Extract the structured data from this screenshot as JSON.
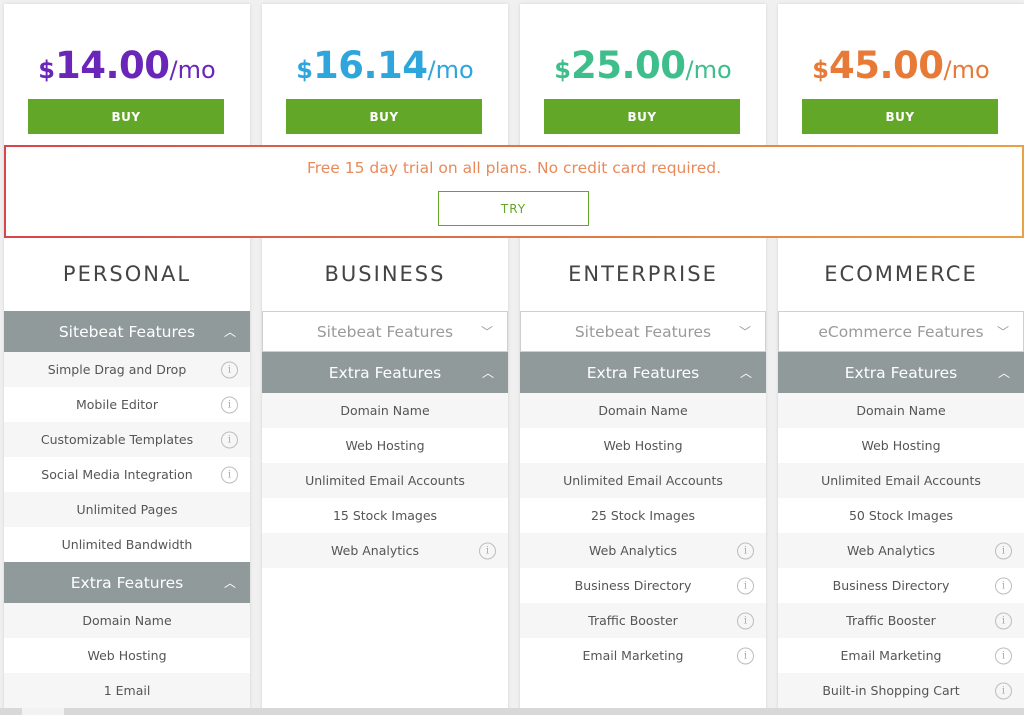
{
  "colors": {
    "buy_green": "#63a729",
    "personal_price": "#6a26b9",
    "business_price": "#2ea6dc",
    "enterprise_price": "#3dbe8b",
    "ecommerce_price": "#e67a36",
    "section_header": "#909a9a",
    "trial_border_left": "#d4474b",
    "trial_border_right": "#e8a143"
  },
  "trial": {
    "text": "Free 15 day trial on all plans. No credit card required.",
    "try_label": "TRY"
  },
  "plans": [
    {
      "currency": "$",
      "amount": "14.00",
      "period": "/mo",
      "buy_label": "BUY",
      "name": "PERSONAL",
      "sections": [
        {
          "title": "Sitebeat Features",
          "state": "expanded",
          "items": [
            "Simple Drag and Drop",
            "Mobile Editor",
            "Customizable Templates",
            "Social Media Integration",
            "Unlimited Pages",
            "Unlimited Bandwidth"
          ]
        },
        {
          "title": "Extra Features",
          "state": "expanded",
          "items": [
            "Domain Name",
            "Web Hosting",
            "1 Email"
          ]
        }
      ]
    },
    {
      "currency": "$",
      "amount": "16.14",
      "period": "/mo",
      "buy_label": "BUY",
      "name": "BUSINESS",
      "sections": [
        {
          "title": "Sitebeat Features",
          "state": "collapsed",
          "items": []
        },
        {
          "title": "Extra Features",
          "state": "expanded",
          "items": [
            "Domain Name",
            "Web Hosting",
            "Unlimited Email Accounts",
            "15 Stock Images",
            "Web Analytics"
          ]
        }
      ]
    },
    {
      "currency": "$",
      "amount": "25.00",
      "period": "/mo",
      "buy_label": "BUY",
      "name": "ENTERPRISE",
      "sections": [
        {
          "title": "Sitebeat Features",
          "state": "collapsed",
          "items": []
        },
        {
          "title": "Extra Features",
          "state": "expanded",
          "items": [
            "Domain Name",
            "Web Hosting",
            "Unlimited Email Accounts",
            "25 Stock Images",
            "Web Analytics",
            "Business Directory",
            "Traffic Booster",
            "Email Marketing"
          ]
        }
      ]
    },
    {
      "currency": "$",
      "amount": "45.00",
      "period": "/mo",
      "buy_label": "BUY",
      "name": "ECOMMERCE",
      "sections": [
        {
          "title": "eCommerce Features",
          "state": "collapsed",
          "items": []
        },
        {
          "title": "Extra Features",
          "state": "expanded",
          "items": [
            "Domain Name",
            "Web Hosting",
            "Unlimited Email Accounts",
            "50 Stock Images",
            "Web Analytics",
            "Business Directory",
            "Traffic Booster",
            "Email Marketing",
            "Built-in Shopping Cart"
          ]
        }
      ]
    }
  ],
  "icons": {
    "info": "info-icon",
    "chevron_up": "chevron-up-icon",
    "chevron_down": "chevron-down-icon"
  }
}
